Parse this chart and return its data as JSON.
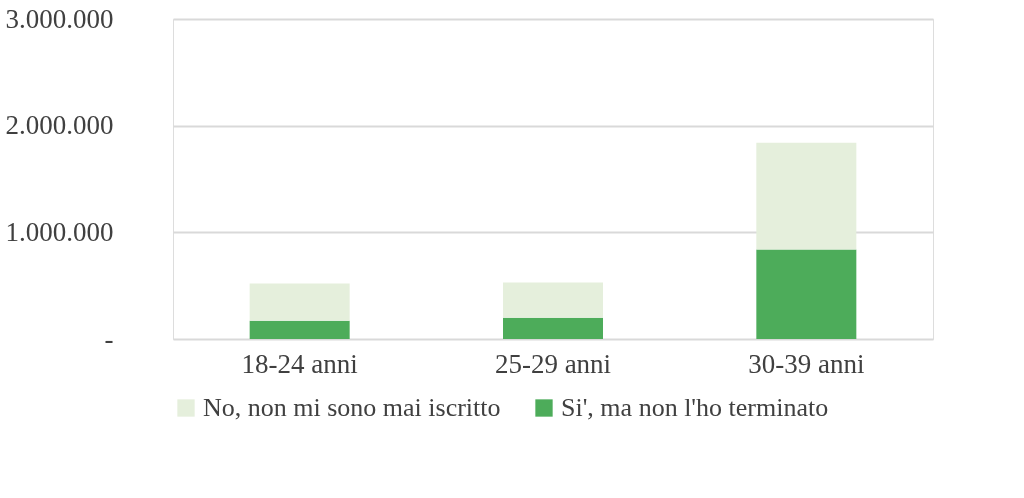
{
  "chart_data": {
    "type": "bar",
    "stacked": true,
    "categories": [
      "18-24 anni",
      "25-29 anni",
      "30-39 anni"
    ],
    "series": [
      {
        "name": "Si', ma non l'ho terminato",
        "color": "#4dac5a",
        "values": [
          170000,
          200000,
          840000
        ]
      },
      {
        "name": "No, non mi sono mai iscritto",
        "color": "#e5efdc",
        "values": [
          350000,
          330000,
          1000000
        ]
      }
    ],
    "ylim": [
      0,
      3000000
    ],
    "yticks": [
      {
        "value": 0,
        "label": "-"
      },
      {
        "value": 1000000,
        "label": "1.000.000"
      },
      {
        "value": 2000000,
        "label": "2.000.000"
      },
      {
        "value": 3000000,
        "label": "3.000.000"
      }
    ],
    "grid": "y",
    "legend": "bottom"
  }
}
